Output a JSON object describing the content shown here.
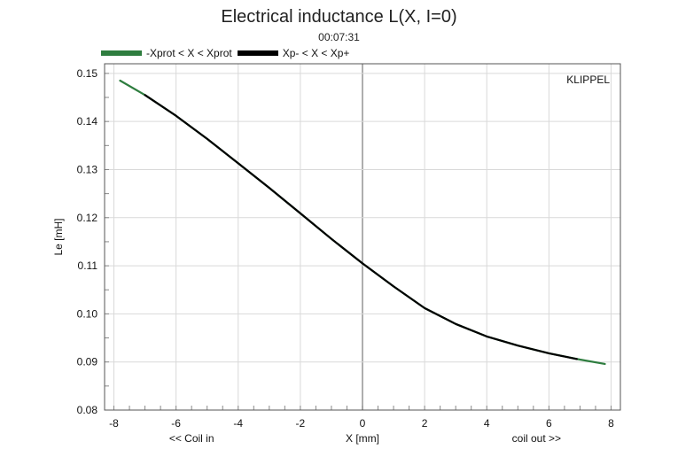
{
  "chart_data": {
    "type": "line",
    "title": "Electrical inductance L(X, I=0)",
    "subtitle": "00:07:31",
    "brand": "KLIPPEL",
    "xlabel": "X [mm]",
    "ylabel": "Le [mH]",
    "x_annotation_left": "<< Coil in",
    "x_annotation_right": "coil out >>",
    "xlim": [
      -8.3,
      8.3
    ],
    "ylim": [
      0.08,
      0.152
    ],
    "xticks": [
      -8,
      -6,
      -4,
      -2,
      0,
      2,
      4,
      6,
      8
    ],
    "yticks": [
      0.08,
      0.09,
      0.1,
      0.11,
      0.12,
      0.13,
      0.14,
      0.15
    ],
    "ytick_labels": [
      "0.08",
      "0.09",
      "0.10",
      "0.11",
      "0.12",
      "0.13",
      "0.14",
      "0.15"
    ],
    "grid": true,
    "legend_position": "top-left",
    "series": [
      {
        "name": "-Xprot < X < Xprot",
        "color": "#2e7d3f",
        "x": [
          -7.8,
          -7.0,
          -6.0,
          -5.0,
          -4.0,
          -3.0,
          -2.0,
          -1.0,
          0.0,
          1.0,
          2.0,
          3.0,
          4.0,
          5.0,
          6.0,
          7.0,
          7.8
        ],
        "y": [
          0.1485,
          0.1455,
          0.1412,
          0.1364,
          0.1313,
          0.1262,
          0.1209,
          0.1156,
          0.1105,
          0.1057,
          0.1012,
          0.0979,
          0.0953,
          0.0934,
          0.0918,
          0.0905,
          0.0896
        ]
      },
      {
        "name": "Xp- < X < Xp+",
        "color": "#000000",
        "x": [
          -7.0,
          -6.0,
          -5.0,
          -4.0,
          -3.0,
          -2.0,
          -1.0,
          0.0,
          1.0,
          2.0,
          3.0,
          4.0,
          5.0,
          6.0,
          6.9
        ],
        "y": [
          0.1455,
          0.1412,
          0.1364,
          0.1313,
          0.1262,
          0.1209,
          0.1156,
          0.1105,
          0.1057,
          0.1012,
          0.0979,
          0.0953,
          0.0934,
          0.0918,
          0.0906
        ]
      }
    ]
  }
}
